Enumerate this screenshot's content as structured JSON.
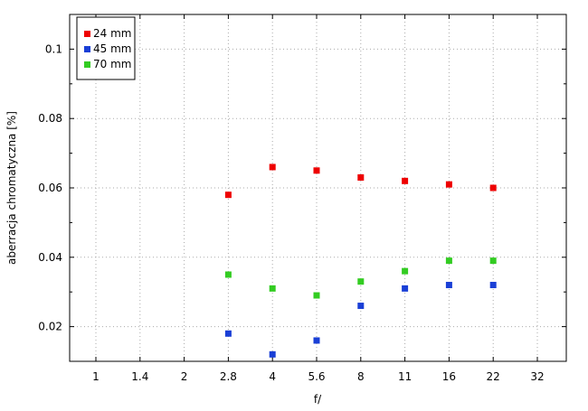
{
  "chart_data": {
    "type": "scatter",
    "xlabel": "f/",
    "ylabel": "aberracja chromatyczna [%]",
    "x_ticks": [
      "1",
      "1.4",
      "2",
      "2.8",
      "4",
      "5.6",
      "8",
      "11",
      "16",
      "22",
      "32"
    ],
    "y_ticks": [
      "0.02",
      "0.04",
      "0.06",
      "0.08",
      "0.1"
    ],
    "ylim": [
      0.01,
      0.11
    ],
    "grid": true,
    "legend_position": "top-left",
    "series": [
      {
        "name": "24 mm",
        "color": "#ee0000",
        "x": [
          "2.8",
          "4",
          "5.6",
          "8",
          "11",
          "16",
          "22"
        ],
        "y": [
          0.058,
          0.066,
          0.065,
          0.063,
          0.062,
          0.061,
          0.06
        ]
      },
      {
        "name": "45 mm",
        "color": "#1a3fd6",
        "x": [
          "2.8",
          "4",
          "5.6",
          "8",
          "11",
          "16",
          "22"
        ],
        "y": [
          0.018,
          0.012,
          0.016,
          0.026,
          0.031,
          0.032,
          0.032
        ]
      },
      {
        "name": "70 mm",
        "color": "#33cc22",
        "x": [
          "2.8",
          "4",
          "5.6",
          "8",
          "11",
          "16",
          "22"
        ],
        "y": [
          0.035,
          0.031,
          0.029,
          0.033,
          0.036,
          0.039,
          0.039
        ]
      }
    ]
  }
}
